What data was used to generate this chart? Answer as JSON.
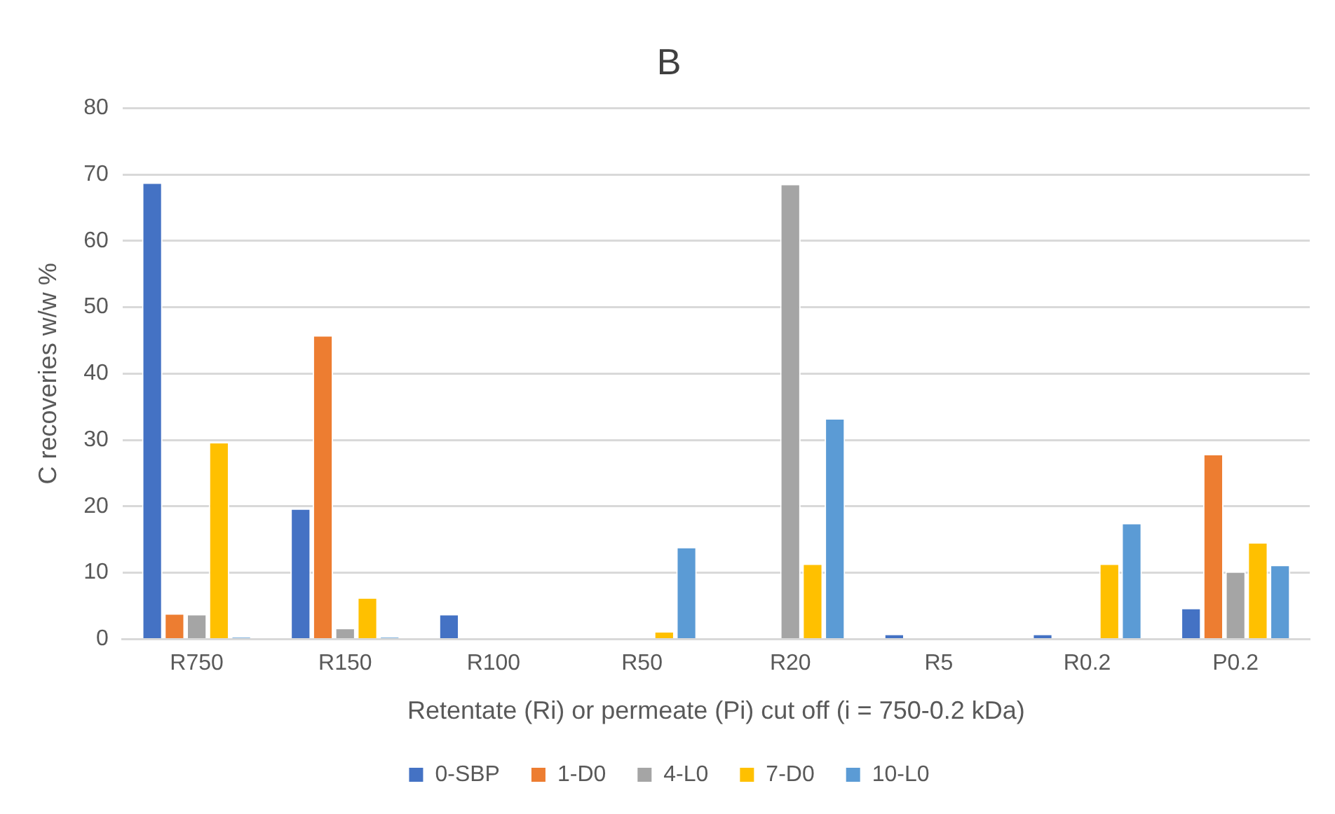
{
  "chart_data": {
    "type": "bar",
    "title": "B",
    "xlabel": "Retentate (Ri) or permeate (Pi) cut off (i = 750-0.2 kDa)",
    "ylabel": "C recoveries w/w %",
    "categories": [
      "R750",
      "R150",
      "R100",
      "R50",
      "R20",
      "R5",
      "R0.2",
      "P0.2"
    ],
    "series": [
      {
        "name": "0-SBP",
        "color": "#4472c4",
        "values": [
          68.8,
          19.7,
          3.8,
          0,
          0,
          0.8,
          0.8,
          4.7
        ]
      },
      {
        "name": "1-D0",
        "color": "#ed7d31",
        "values": [
          3.9,
          45.8,
          0,
          0,
          0,
          0,
          0,
          27.9
        ]
      },
      {
        "name": "4-L0",
        "color": "#a5a5a5",
        "values": [
          3.8,
          1.7,
          0,
          0,
          68.6,
          0,
          0,
          10.2
        ]
      },
      {
        "name": "7-D0",
        "color": "#ffc000",
        "values": [
          29.7,
          6.3,
          0,
          1.2,
          11.4,
          0,
          11.4,
          14.6
        ]
      },
      {
        "name": "10-L0",
        "color": "#5b9bd5",
        "values": [
          0.3,
          0.3,
          0,
          13.9,
          33.3,
          0,
          17.5,
          11.2
        ]
      }
    ],
    "ylim": [
      0,
      80
    ],
    "yticks": [
      0,
      10,
      20,
      30,
      40,
      50,
      60,
      70,
      80
    ],
    "grid": "y",
    "legend": "bottom"
  }
}
